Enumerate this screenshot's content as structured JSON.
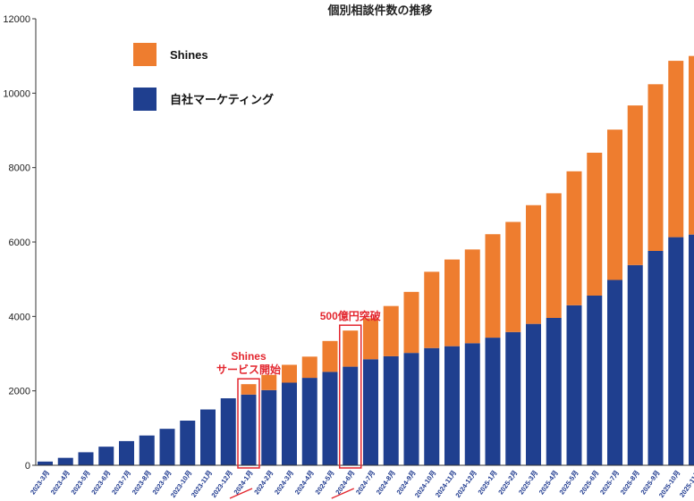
{
  "chart_data": {
    "type": "bar",
    "stacked": true,
    "title": "個別相談件数の推移",
    "xlabel": "",
    "ylabel": "",
    "ylim": [
      0,
      12000
    ],
    "yticks": [
      0,
      2000,
      4000,
      6000,
      8000,
      10000,
      12000
    ],
    "legend_position": "top-left",
    "categories": [
      "2023-3月",
      "2023-4月",
      "2023-5月",
      "2023-6月",
      "2023-7月",
      "2023-8月",
      "2023-9月",
      "2023-10月",
      "2023-11月",
      "2023-12月",
      "2024-1月",
      "2024-2月",
      "2024-3月",
      "2024-4月",
      "2024-5月",
      "2024-6月",
      "2024-7月",
      "2024-8月",
      "2024-9月",
      "2024-10月",
      "2024-11月",
      "2024-12月",
      "2025-1月",
      "2025-2月",
      "2025-3月",
      "2025-4月",
      "2025-5月",
      "2025-6月",
      "2025-7月",
      "2025-8月",
      "2025-9月",
      "2025-10月",
      "2025-11月"
    ],
    "series": [
      {
        "name": "自社マーケティング",
        "color": "#1f3f8f",
        "values": [
          100,
          200,
          350,
          500,
          650,
          800,
          980,
          1200,
          1500,
          1800,
          1900,
          2020,
          2220,
          2350,
          2510,
          2650,
          2850,
          2930,
          3020,
          3150,
          3200,
          3280,
          3430,
          3580,
          3800,
          3960,
          4300,
          4560,
          4980,
          5380,
          5760,
          6130,
          6200
        ]
      },
      {
        "name": "Shines",
        "color": "#ee7d2f",
        "values": [
          0,
          0,
          0,
          0,
          0,
          0,
          0,
          0,
          0,
          0,
          280,
          410,
          480,
          570,
          830,
          970,
          1100,
          1350,
          1640,
          2050,
          2330,
          2520,
          2780,
          2960,
          3190,
          3350,
          3600,
          3840,
          4040,
          4290,
          4480,
          4740,
          4800
        ]
      }
    ],
    "annotations": [
      {
        "category": "2024-1月",
        "lines": [
          "Shines",
          "サービス開始"
        ],
        "color": "#e3262e"
      },
      {
        "category": "2024-6月",
        "lines": [
          "500億円突破"
        ],
        "color": "#e3262e"
      }
    ]
  }
}
